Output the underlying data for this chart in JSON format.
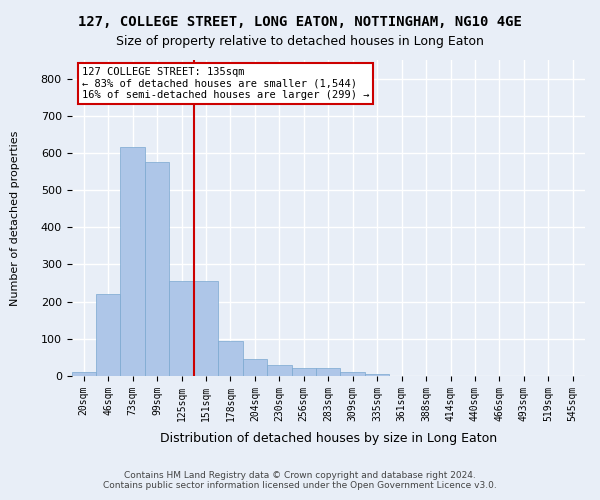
{
  "title": "127, COLLEGE STREET, LONG EATON, NOTTINGHAM, NG10 4GE",
  "subtitle": "Size of property relative to detached houses in Long Eaton",
  "xlabel": "Distribution of detached houses by size in Long Eaton",
  "ylabel": "Number of detached properties",
  "footer_line1": "Contains HM Land Registry data © Crown copyright and database right 2024.",
  "footer_line2": "Contains public sector information licensed under the Open Government Licence v3.0.",
  "annotation_line1": "127 COLLEGE STREET: 135sqm",
  "annotation_line2": "← 83% of detached houses are smaller (1,544)",
  "annotation_line3": "16% of semi-detached houses are larger (299) →",
  "bar_labels": [
    "20sqm",
    "46sqm",
    "73sqm",
    "99sqm",
    "125sqm",
    "151sqm",
    "178sqm",
    "204sqm",
    "230sqm",
    "256sqm",
    "283sqm",
    "309sqm",
    "335sqm",
    "361sqm",
    "388sqm",
    "414sqm",
    "440sqm",
    "466sqm",
    "493sqm",
    "519sqm",
    "545sqm"
  ],
  "bar_values": [
    10,
    220,
    615,
    575,
    255,
    255,
    95,
    45,
    30,
    20,
    20,
    10,
    5,
    0,
    0,
    0,
    0,
    0,
    0,
    0,
    0
  ],
  "bar_color": "#aec6e8",
  "bar_edge_color": "#7aa8d0",
  "vline_x": 4.0,
  "vline_color": "#cc0000",
  "ylim": [
    0,
    850
  ],
  "yticks": [
    0,
    100,
    200,
    300,
    400,
    500,
    600,
    700,
    800
  ],
  "background_color": "#e8eef7",
  "grid_color": "#ffffff",
  "annotation_box_color": "#ffffff",
  "annotation_box_edge": "#cc0000"
}
